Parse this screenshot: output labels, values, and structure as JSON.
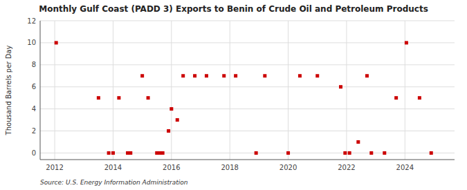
{
  "chart_data": {
    "type": "scatter",
    "title": "Monthly Gulf Coast (PADD 3) Exports to Benin of Crude Oil and Petroleum Products",
    "ylabel": "Thousand Barrels per Day",
    "source": "Source: U.S. Energy Information Administration",
    "color": "#cc0000",
    "marker": "square",
    "grid": true,
    "xlim": [
      2011.5,
      2025.7
    ],
    "ylim": [
      -0.6,
      12
    ],
    "xticks": [
      2012,
      2014,
      2016,
      2018,
      2020,
      2022,
      2024
    ],
    "yticks": [
      0,
      2,
      4,
      6,
      8,
      10,
      12
    ],
    "x": [
      2012.05,
      2013.5,
      2014.2,
      2013.85,
      2014.0,
      2014.5,
      2014.6,
      2015.0,
      2015.2,
      2015.5,
      2015.6,
      2015.7,
      2015.9,
      2016.0,
      2016.2,
      2016.4,
      2016.8,
      2017.2,
      2017.8,
      2018.2,
      2018.9,
      2019.2,
      2020.0,
      2020.4,
      2021.0,
      2021.8,
      2021.95,
      2022.1,
      2022.4,
      2022.7,
      2022.85,
      2023.3,
      2023.7,
      2024.05,
      2024.5,
      2024.9
    ],
    "values": [
      10,
      5,
      5,
      0,
      0,
      0,
      0,
      7,
      5,
      0,
      0,
      0,
      2,
      4,
      3,
      7,
      7,
      7,
      7,
      7,
      0,
      7,
      0,
      7,
      7,
      6,
      0,
      0,
      1,
      7,
      0,
      0,
      5,
      10,
      5,
      0
    ]
  }
}
